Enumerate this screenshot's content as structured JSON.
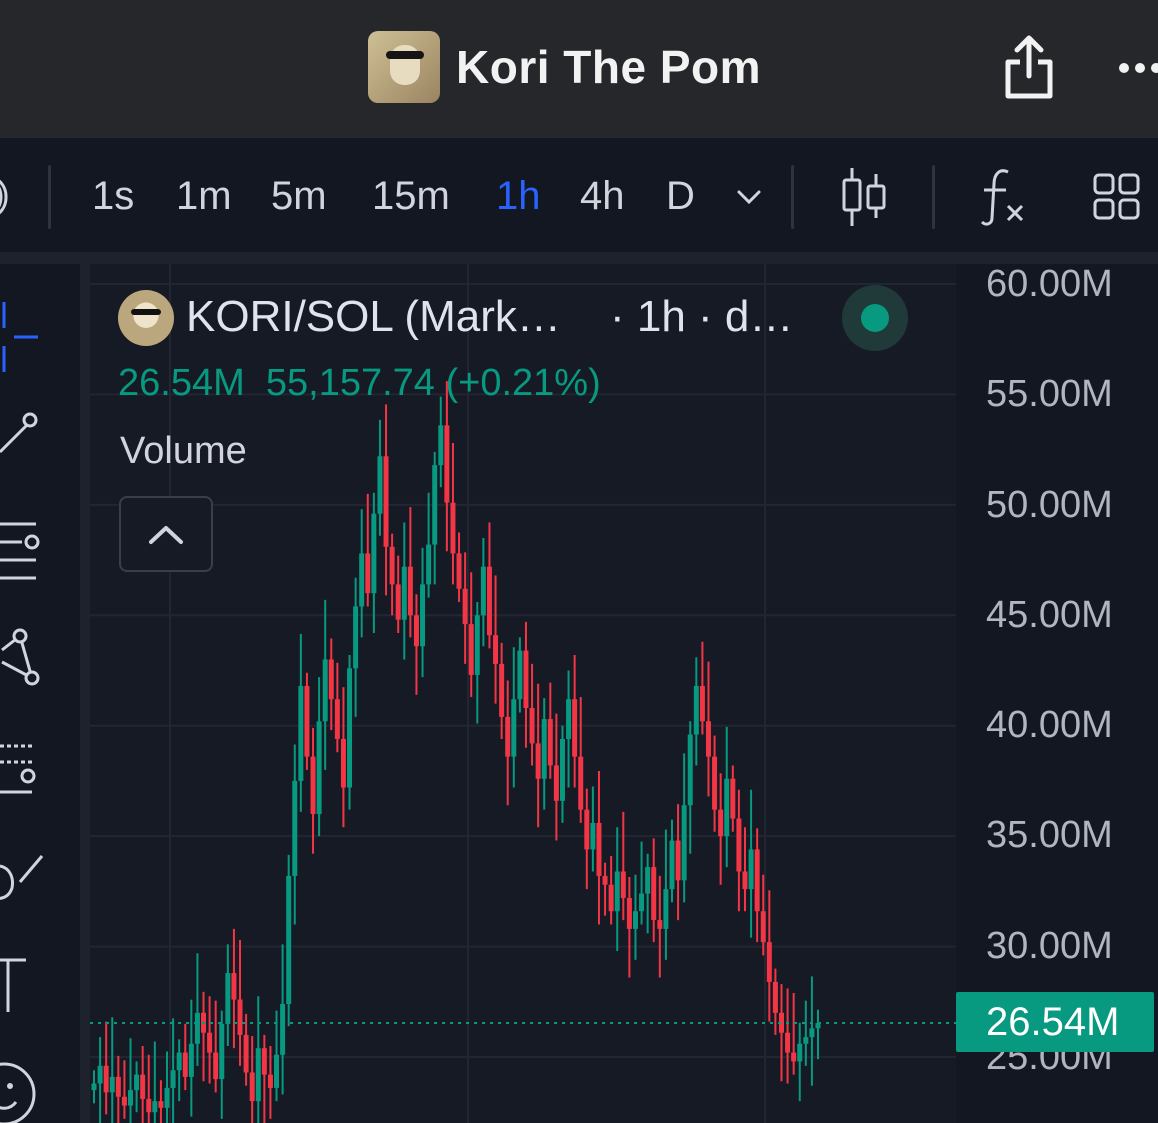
{
  "app": {
    "title": "Kori The Pom",
    "avatar_icon": "pomeranian-with-sunglasses"
  },
  "toolbar": {
    "timeframes": [
      {
        "label": "1s",
        "active": false
      },
      {
        "label": "1m",
        "active": false
      },
      {
        "label": "5m",
        "active": false
      },
      {
        "label": "15m",
        "active": false
      },
      {
        "label": "1h",
        "active": true
      },
      {
        "label": "4h",
        "active": false
      },
      {
        "label": "D",
        "active": false
      }
    ],
    "icons": [
      "chevron-down-icon",
      "candlestick-style-icon",
      "indicators-fx-icon",
      "layout-grid-icon"
    ]
  },
  "left_tools": [
    "crosshair-icon",
    "trend-line-icon",
    "fib-retracement-icon",
    "pattern-icon",
    "prediction-icon",
    "brush-icon",
    "text-icon",
    "emoji-icon"
  ],
  "legend": {
    "title": "KORI/SOL (Mark…",
    "title_suffix": "· 1h · d…",
    "values": "26.54M  55,157.74 (+0.21%)",
    "volume_label": "Volume"
  },
  "price_axis": {
    "labels": [
      "60.00M",
      "55.00M",
      "50.00M",
      "45.00M",
      "40.00M",
      "35.00M",
      "30.00M",
      "25.00M"
    ],
    "last_price": "26.54M"
  },
  "colors": {
    "up": "#089981",
    "down": "#f23645",
    "active_timeframe": "#2962ff",
    "background": "#131722"
  },
  "chart_data": {
    "type": "candlestick",
    "y_unit": "market cap (M)",
    "ylim": [
      23.0,
      61.5
    ],
    "last_price": 26.54,
    "approximate_close_series": [
      23.8,
      24.6,
      23.4,
      24.1,
      23.2,
      22.8,
      23.5,
      24.2,
      23.1,
      22.5,
      23.0,
      22.7,
      23.6,
      24.4,
      25.2,
      24.1,
      25.6,
      27.0,
      26.1,
      25.2,
      24.0,
      26.5,
      28.8,
      27.6,
      26.0,
      24.3,
      23.0,
      25.4,
      24.2,
      23.6,
      25.1,
      27.4,
      33.2,
      37.5,
      41.8,
      38.6,
      36.0,
      40.2,
      43.0,
      41.2,
      39.4,
      37.2,
      42.6,
      45.4,
      47.8,
      46.0,
      49.6,
      52.2,
      48.1,
      46.4,
      44.8,
      47.2,
      45.0,
      43.6,
      46.4,
      48.2,
      51.8,
      53.6,
      50.1,
      47.8,
      46.2,
      44.6,
      42.3,
      45.0,
      47.2,
      44.1,
      42.8,
      40.4,
      38.6,
      41.2,
      43.4,
      40.8,
      39.2,
      37.6,
      40.3,
      38.2,
      36.6,
      39.4,
      41.2,
      38.6,
      36.2,
      34.4,
      35.6,
      33.2,
      32.8,
      31.6,
      33.4,
      32.2,
      30.8,
      31.6,
      32.4,
      33.6,
      31.2,
      30.8,
      32.6,
      34.8,
      33.0,
      36.4,
      39.6,
      41.8,
      40.2,
      38.6,
      36.2,
      35.0,
      37.6,
      35.8,
      33.4,
      32.6,
      34.4,
      31.6,
      30.2,
      28.4,
      27.0,
      26.1,
      25.2,
      24.8,
      25.6,
      25.9,
      26.3,
      26.54
    ]
  }
}
